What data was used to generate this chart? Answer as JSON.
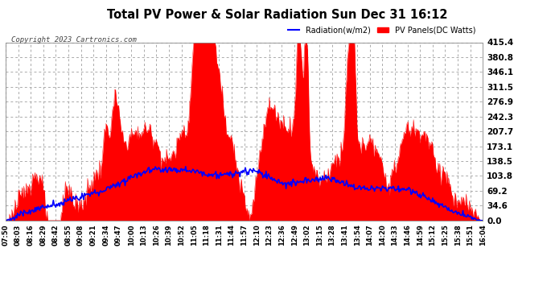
{
  "title": "Total PV Power & Solar Radiation Sun Dec 31 16:12",
  "copyright": "Copyright 2023 Cartronics.com",
  "legend_radiation": "Radiation(w/m2)",
  "legend_pv": "PV Panels(DC Watts)",
  "radiation_color": "blue",
  "pv_color": "red",
  "bg_color": "#ffffff",
  "grid_color": "#aaaaaa",
  "ymin": 0.0,
  "ymax": 415.4,
  "yticks": [
    0.0,
    34.6,
    69.2,
    103.8,
    138.5,
    173.1,
    207.7,
    242.3,
    276.9,
    311.5,
    346.1,
    380.8,
    415.4
  ],
  "time_labels": [
    "07:50",
    "08:03",
    "08:16",
    "08:29",
    "08:42",
    "08:55",
    "09:08",
    "09:21",
    "09:34",
    "09:47",
    "10:00",
    "10:13",
    "10:26",
    "10:39",
    "10:52",
    "11:05",
    "11:18",
    "11:31",
    "11:44",
    "11:57",
    "12:10",
    "12:23",
    "12:36",
    "12:49",
    "13:02",
    "13:15",
    "13:28",
    "13:41",
    "13:54",
    "14:07",
    "14:20",
    "14:33",
    "14:46",
    "14:59",
    "15:12",
    "15:25",
    "15:38",
    "15:51",
    "16:04"
  ],
  "n_points": 600
}
